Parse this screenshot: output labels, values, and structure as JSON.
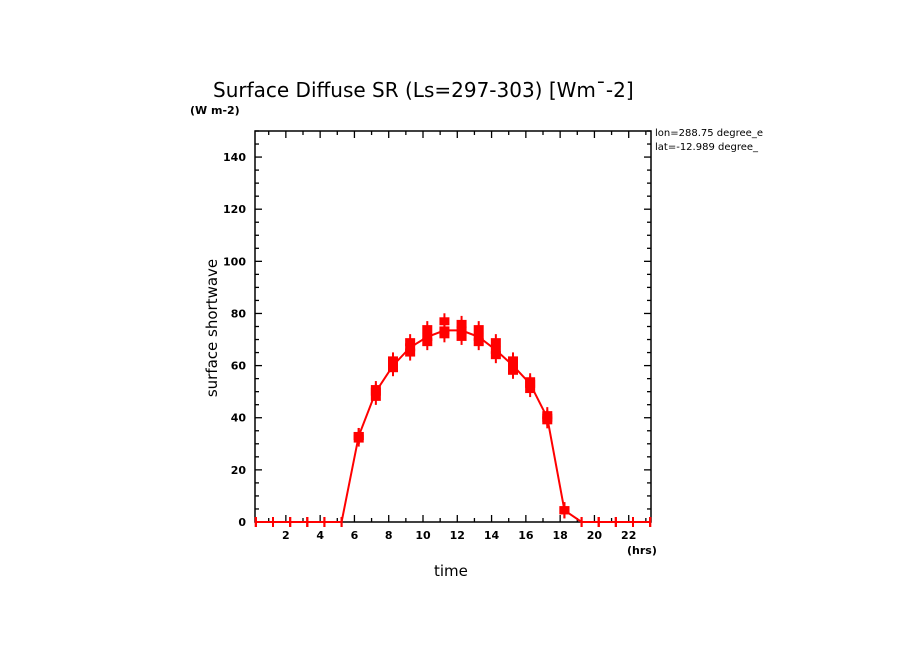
{
  "chart_data": {
    "type": "line",
    "title": "Surface Diffuse SR (Ls=297-303) [Wm¯-2]",
    "units_label": "(W m-2)",
    "annotations": [
      "lon=288.75 degree_e",
      "lat=-12.989 degree_"
    ],
    "xlabel": "time",
    "xunit": "(hrs)",
    "ylabel": "surface shortwave",
    "xlim": [
      0.2,
      23.3
    ],
    "ylim": [
      0,
      150
    ],
    "xticks": [
      2,
      4,
      6,
      8,
      10,
      12,
      14,
      16,
      18,
      20,
      22
    ],
    "yticks": [
      0,
      20,
      40,
      60,
      80,
      100,
      120,
      140
    ],
    "grid": false,
    "color": "#ff0000",
    "series": [
      {
        "name": "surface shortwave",
        "x": [
          0.25,
          1.25,
          2.25,
          3.25,
          4.25,
          5.25,
          6.25,
          7.25,
          8.25,
          9.25,
          10.25,
          11.25,
          12.25,
          13.25,
          14.25,
          15.25,
          16.25,
          17.25,
          18.25,
          19.25,
          20.25,
          21.25,
          22.25,
          23.25
        ],
        "values": [
          0,
          0,
          0,
          0,
          0,
          0,
          33,
          50,
          60,
          67,
          71,
          73.5,
          73.5,
          71,
          66,
          60,
          53,
          40,
          4.5,
          0,
          0,
          0,
          0,
          0
        ],
        "max": [
          0,
          0,
          0,
          0,
          0,
          0,
          33,
          51,
          62,
          69,
          74,
          77,
          76,
          74,
          69,
          62,
          54,
          41,
          4.5,
          0,
          0,
          0,
          0,
          0
        ],
        "min": [
          0,
          0,
          0,
          0,
          0,
          0,
          32,
          48,
          59,
          65,
          69,
          72,
          71,
          69,
          64,
          58,
          51,
          39,
          4.5,
          0,
          0,
          0,
          0,
          0
        ]
      }
    ]
  }
}
